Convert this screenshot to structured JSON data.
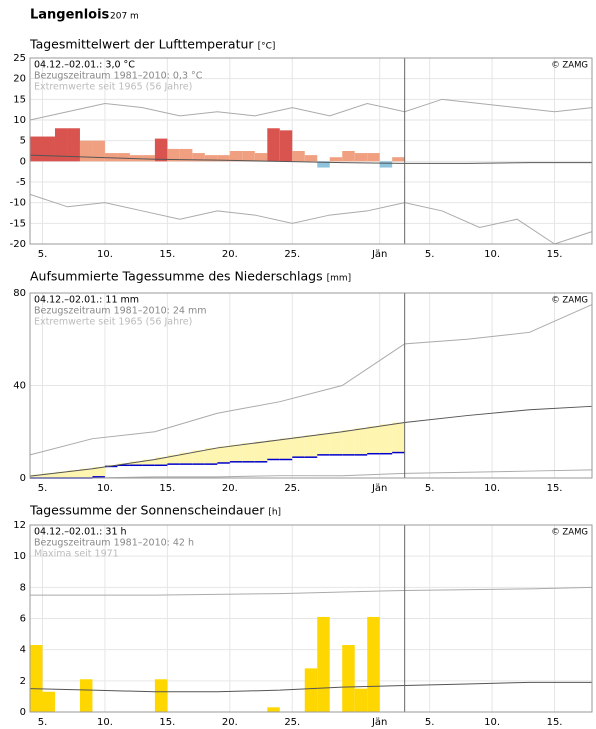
{
  "header": {
    "title": "Langenlois",
    "subtitle": "207 m"
  },
  "chart_data": [
    {
      "type": "temperature",
      "title": "Tagesmittelwert der Lufttemperatur",
      "unit": "[°C]",
      "info": [
        "04.12.–02.01.: 3,0 °C",
        "Bezugszeitraum 1981–2010: 0,3 °C",
        "Extremwerte seit 1965 (56 Jahre)"
      ],
      "copyright": "© ZAMG",
      "xlim": [
        0,
        45
      ],
      "xticks": [
        {
          "value": 1,
          "label": "5."
        },
        {
          "value": 6,
          "label": "10."
        },
        {
          "value": 11,
          "label": "15."
        },
        {
          "value": 16,
          "label": "20."
        },
        {
          "value": 21,
          "label": "25."
        },
        {
          "value": 28,
          "label": "Jän"
        },
        {
          "value": 32,
          "label": "5."
        },
        {
          "value": 37,
          "label": "10."
        },
        {
          "value": 42,
          "label": "15."
        }
      ],
      "ylim": [
        -20,
        25
      ],
      "yticks": [
        25,
        20,
        15,
        10,
        5,
        0,
        -5,
        -10,
        -15,
        -20
      ],
      "values": [
        6,
        6,
        8,
        8,
        5,
        5,
        2,
        2,
        1.5,
        1.5,
        5.5,
        3,
        3,
        2,
        1.5,
        1.5,
        2.5,
        2.5,
        2,
        8,
        7.5,
        2.5,
        1.5,
        -1.5,
        1,
        2.5,
        2,
        2,
        -1.5,
        1
      ],
      "bar_colors": [
        "#d9534f",
        "#d9534f",
        "#d9534f",
        "#d9534f",
        "#f0a080",
        "#f0a080",
        "#f0a080",
        "#f0a080",
        "#f0a080",
        "#f0a080",
        "#d9534f",
        "#f0a080",
        "#f0a080",
        "#f0a080",
        "#f0a080",
        "#f0a080",
        "#f0a080",
        "#f0a080",
        "#f0a080",
        "#d9534f",
        "#d9534f",
        "#f0a080",
        "#f0a080",
        "#8ec3dd",
        "#f0a080",
        "#f0a080",
        "#f0a080",
        "#f0a080",
        "#8ec3dd",
        "#f0a080"
      ],
      "lines": [
        {
          "color": "#555555",
          "x": [
            0,
            5,
            10,
            15,
            20,
            25,
            30,
            35,
            40,
            45
          ],
          "values": [
            1.5,
            1,
            0.5,
            0.3,
            0,
            -0.3,
            -0.5,
            -0.5,
            -0.3,
            -0.3
          ]
        },
        {
          "color": "#aaaaaa",
          "x": [
            0,
            3,
            6,
            9,
            12,
            15,
            18,
            21,
            24,
            27,
            30,
            33,
            36,
            39,
            42,
            45
          ],
          "values": [
            10,
            12,
            14,
            13,
            11,
            12,
            11,
            13,
            11,
            14,
            12,
            15,
            14,
            13,
            12,
            13
          ]
        },
        {
          "color": "#aaaaaa",
          "x": [
            0,
            3,
            6,
            9,
            12,
            15,
            18,
            21,
            24,
            27,
            30,
            33,
            36,
            39,
            42,
            45
          ],
          "values": [
            -8,
            -11,
            -10,
            -12,
            -14,
            -12,
            -13,
            -15,
            -13,
            -12,
            -10,
            -12,
            -16,
            -14,
            -20,
            -17
          ]
        }
      ]
    },
    {
      "type": "cumulative",
      "title": "Aufsummierte Tagessumme des Niederschlags",
      "unit": "[mm]",
      "info": [
        "04.12.–02.01.: 11 mm",
        "Bezugszeitraum 1981–2010: 24 mm",
        "Extremwerte seit 1965 (56 Jahre)"
      ],
      "copyright": "© ZAMG",
      "xlim": [
        0,
        45
      ],
      "xticks": [
        {
          "value": 1,
          "label": "5."
        },
        {
          "value": 6,
          "label": "10."
        },
        {
          "value": 11,
          "label": "15."
        },
        {
          "value": 16,
          "label": "20."
        },
        {
          "value": 21,
          "label": "25."
        },
        {
          "value": 28,
          "label": "Jän"
        },
        {
          "value": 32,
          "label": "5."
        },
        {
          "value": 37,
          "label": "10."
        },
        {
          "value": 42,
          "label": "15."
        }
      ],
      "ylim": [
        0,
        80
      ],
      "yticks": [
        80,
        40,
        0
      ],
      "values": [
        0,
        0,
        0,
        0,
        0,
        0.5,
        5,
        5.5,
        5.5,
        5.5,
        5.5,
        6,
        6,
        6,
        6,
        6.5,
        7,
        7,
        7,
        8,
        8,
        9,
        9,
        10,
        10,
        10,
        10,
        10.5,
        10.5,
        11
      ],
      "color": "#0000cc",
      "below_color": "#fdf5b0",
      "lines": [
        {
          "color": "#555555",
          "x": [
            0,
            5,
            10,
            15,
            20,
            25,
            30,
            35,
            40,
            45
          ],
          "values": [
            0.8,
            4,
            8,
            13,
            16.5,
            20,
            24,
            27,
            29.5,
            31
          ]
        },
        {
          "color": "#aaaaaa",
          "x": [
            0,
            5,
            10,
            15,
            20,
            25,
            30,
            35,
            40,
            45
          ],
          "values": [
            10,
            17,
            20,
            28,
            33,
            40,
            58,
            60,
            63,
            75
          ]
        },
        {
          "color": "#aaaaaa",
          "x": [
            0,
            5,
            10,
            15,
            20,
            25,
            30,
            35,
            40,
            45
          ],
          "values": [
            0,
            0,
            0.5,
            0.5,
            1,
            1,
            2,
            2.5,
            3,
            3.5
          ]
        }
      ]
    },
    {
      "type": "bar",
      "title": "Tagessumme der Sonnenscheindauer",
      "unit": "[h]",
      "info": [
        "04.12.–02.01.: 31 h",
        "Bezugszeitraum 1981–2010: 42 h",
        "Maxima seit 1971"
      ],
      "copyright": "© ZAMG",
      "xlim": [
        0,
        45
      ],
      "xticks": [
        {
          "value": 1,
          "label": "5."
        },
        {
          "value": 6,
          "label": "10."
        },
        {
          "value": 11,
          "label": "15."
        },
        {
          "value": 16,
          "label": "20."
        },
        {
          "value": 21,
          "label": "25."
        },
        {
          "value": 28,
          "label": "Jän"
        },
        {
          "value": 32,
          "label": "5."
        },
        {
          "value": 37,
          "label": "10."
        },
        {
          "value": 42,
          "label": "15."
        }
      ],
      "ylim": [
        0,
        12
      ],
      "yticks": [
        12,
        10,
        8,
        6,
        4,
        2,
        0
      ],
      "values": [
        4.3,
        1.3,
        0,
        0,
        2.1,
        0,
        0,
        0,
        0,
        0,
        2.1,
        0,
        0,
        0,
        0,
        0,
        0,
        0,
        0,
        0.3,
        0,
        0,
        2.8,
        6.1,
        0,
        4.3,
        1.5,
        6.1,
        0,
        0
      ],
      "color": "#ffd700",
      "lines": [
        {
          "color": "#555555",
          "x": [
            0,
            5,
            10,
            15,
            20,
            25,
            30,
            35,
            40,
            45
          ],
          "values": [
            1.5,
            1.4,
            1.3,
            1.3,
            1.4,
            1.6,
            1.7,
            1.8,
            1.9,
            1.9
          ]
        },
        {
          "color": "#aaaaaa",
          "x": [
            0,
            10,
            20,
            30,
            40,
            45
          ],
          "values": [
            7.5,
            7.5,
            7.6,
            7.8,
            7.9,
            8
          ]
        }
      ]
    }
  ]
}
